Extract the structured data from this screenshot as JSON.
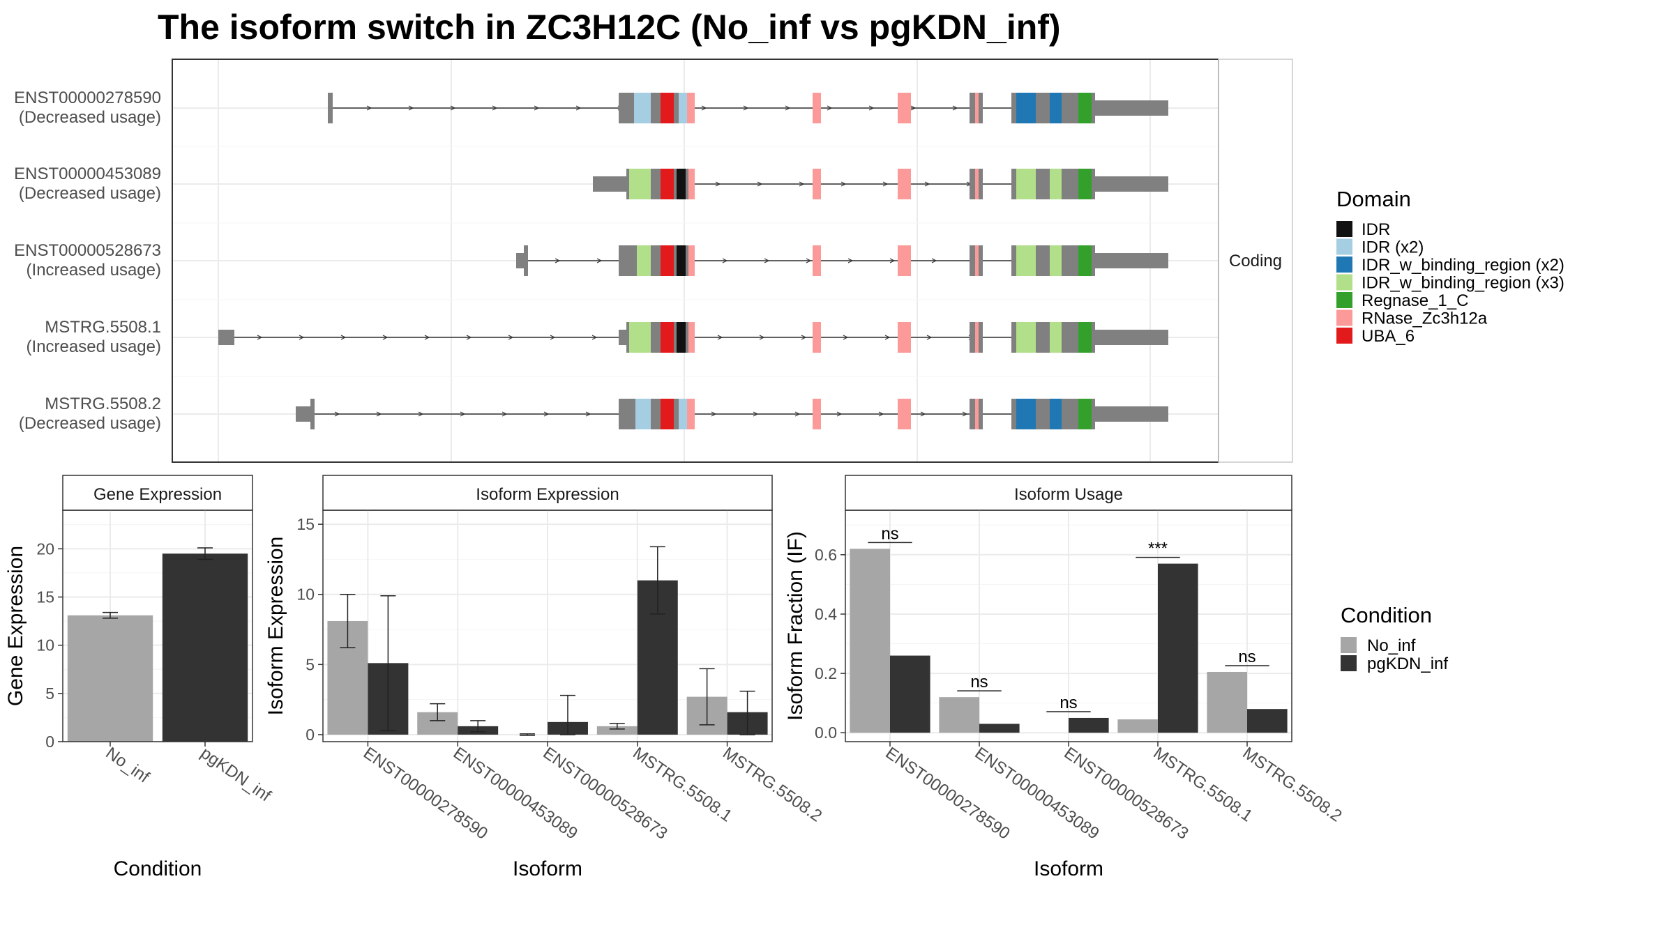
{
  "title": "The isoform switch in ZC3H12C (No_inf vs pgKDN_inf)",
  "colors": {
    "IDR": "#111111",
    "IDR (x2)": "#a6cee3",
    "IDR_w_binding_region (x2)": "#1f78b4",
    "IDR_w_binding_region (x3)": "#b2df8a",
    "Regnase_1_C": "#33a02c",
    "RNase_Zc3h12a": "#fb9a99",
    "UBA_6": "#e31a1c",
    "exon": "#808080",
    "No_inf": "#a6a6a6",
    "pgKDN_inf": "#333333"
  },
  "structure": {
    "facet_label": "Coding",
    "isoforms": [
      {
        "id": "ENST00000278590",
        "note": "(Decreased usage)"
      },
      {
        "id": "ENST00000453089",
        "note": "(Decreased usage)"
      },
      {
        "id": "ENST00000528673",
        "note": "(Increased usage)"
      },
      {
        "id": "MSTRG.5508.1",
        "note": "(Increased usage)"
      },
      {
        "id": "MSTRG.5508.2",
        "note": "(Decreased usage)"
      }
    ],
    "legend": {
      "title": "Domain",
      "items": [
        "IDR",
        "IDR (x2)",
        "IDR_w_binding_region (x2)",
        "IDR_w_binding_region (x3)",
        "Regnase_1_C",
        "RNase_Zc3h12a",
        "UBA_6"
      ]
    }
  },
  "chart_data": [
    {
      "type": "bar",
      "title": "Gene Expression",
      "xlabel": "Condition",
      "ylabel": "Gene Expression",
      "categories": [
        "No_inf",
        "pgKDN_inf"
      ],
      "values": [
        13.1,
        19.5
      ],
      "errors": [
        [
          12.8,
          13.4
        ],
        [
          18.9,
          20.1
        ]
      ],
      "ylim": [
        0,
        24
      ],
      "yticks": [
        0,
        5,
        10,
        15,
        20
      ]
    },
    {
      "type": "bar",
      "title": "Isoform Expression",
      "xlabel": "Isoform",
      "ylabel": "Isoform Expression",
      "categories": [
        "ENST00000278590",
        "ENST00000453089",
        "ENST00000528673",
        "MSTRG.5508.1",
        "MSTRG.5508.2"
      ],
      "series": [
        {
          "name": "No_inf",
          "values": [
            8.1,
            1.6,
            0.0,
            0.6,
            2.7
          ],
          "errors": [
            [
              6.2,
              10.0
            ],
            [
              1.0,
              2.2
            ],
            [
              -0.05,
              0.05
            ],
            [
              0.4,
              0.8
            ],
            [
              0.7,
              4.7
            ]
          ]
        },
        {
          "name": "pgKDN_inf",
          "values": [
            5.1,
            0.6,
            0.9,
            11.0,
            1.6
          ],
          "errors": [
            [
              0.3,
              9.9
            ],
            [
              0.2,
              1.0
            ],
            [
              0.0,
              2.8
            ],
            [
              8.6,
              13.4
            ],
            [
              0.0,
              3.1
            ]
          ]
        }
      ],
      "ylim": [
        -0.5,
        16
      ],
      "yticks": [
        0,
        5,
        10,
        15
      ]
    },
    {
      "type": "bar",
      "title": "Isoform Usage",
      "xlabel": "Isoform",
      "ylabel": "Isoform Fraction (IF)",
      "categories": [
        "ENST00000278590",
        "ENST00000453089",
        "ENST00000528673",
        "MSTRG.5508.1",
        "MSTRG.5508.2"
      ],
      "series": [
        {
          "name": "No_inf",
          "values": [
            0.62,
            0.12,
            0.0,
            0.045,
            0.205
          ]
        },
        {
          "name": "pgKDN_inf",
          "values": [
            0.26,
            0.03,
            0.05,
            0.57,
            0.08
          ]
        }
      ],
      "significance": [
        "ns",
        "ns",
        "ns",
        "***",
        "ns"
      ],
      "ylim": [
        -0.03,
        0.75
      ],
      "yticks": [
        0.0,
        0.2,
        0.4,
        0.6
      ],
      "legend": {
        "title": "Condition",
        "items": [
          "No_inf",
          "pgKDN_inf"
        ]
      }
    }
  ]
}
